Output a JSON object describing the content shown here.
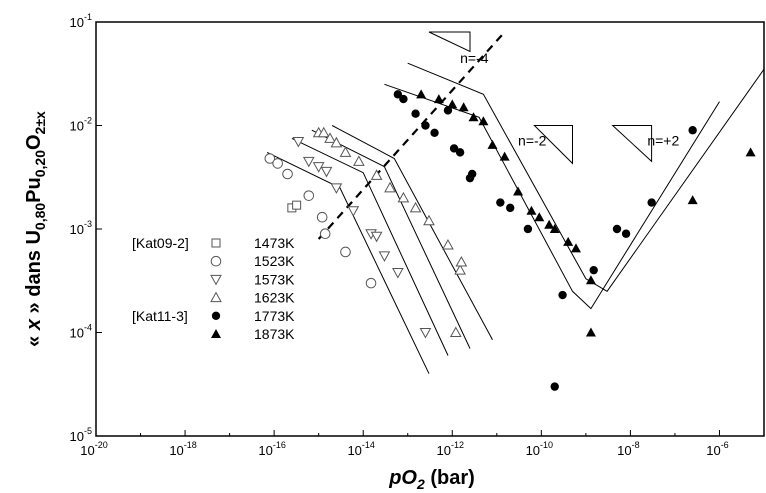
{
  "chart_data": {
    "type": "scatter",
    "xlabel": "pO2 (bar)",
    "ylabel": "« x » dans U0,80Pu0,20O2±x",
    "x_scale": "log",
    "y_scale": "log",
    "xlim": [
      1e-20,
      1e-05
    ],
    "ylim": [
      1e-05,
      0.1
    ],
    "x_ticks": [
      "-20",
      "-18",
      "-16",
      "-14",
      "-12",
      "-10",
      "-8",
      "-6"
    ],
    "y_ticks": [
      "-1",
      "-2",
      "-3",
      "-4",
      "-5"
    ],
    "tick_base": "10",
    "grid": false,
    "legend_groups": [
      {
        "ref": "[Kat09-2]",
        "entries": [
          "1473K"
        ]
      },
      {
        "ref": "",
        "entries": [
          "1523K",
          "1573K",
          "1623K"
        ]
      },
      {
        "ref": "[Kat11-3]",
        "entries": [
          "1773K",
          "1873K"
        ]
      }
    ],
    "series": [
      {
        "name": "1473K",
        "marker": "square-open",
        "points": [
          [
            2.5e-16,
            0.0016
          ],
          [
            3.2e-16,
            0.0017
          ]
        ]
      },
      {
        "name": "1523K",
        "marker": "circle-open",
        "points": [
          [
            8e-17,
            0.0048
          ],
          [
            1.2e-16,
            0.0043
          ],
          [
            2e-16,
            0.0034
          ],
          [
            6e-16,
            0.0021
          ],
          [
            1.2e-15,
            0.0013
          ],
          [
            1.4e-15,
            0.0009
          ],
          [
            4e-15,
            0.0006
          ],
          [
            1.5e-14,
            0.0003
          ]
        ]
      },
      {
        "name": "1573K",
        "marker": "triangle-down-open",
        "points": [
          [
            3.5e-16,
            0.007
          ],
          [
            6e-16,
            0.0045
          ],
          [
            1e-15,
            0.004
          ],
          [
            1.5e-15,
            0.0036
          ],
          [
            2.5e-15,
            0.0025
          ],
          [
            6e-15,
            0.0015
          ],
          [
            1.5e-14,
            0.0009
          ],
          [
            2e-14,
            0.00085
          ],
          [
            3e-14,
            0.00055
          ],
          [
            6e-14,
            0.00038
          ],
          [
            2.5e-13,
            0.0001
          ]
        ]
      },
      {
        "name": "1623K",
        "marker": "triangle-up-open",
        "points": [
          [
            1e-15,
            0.0085
          ],
          [
            1.3e-15,
            0.0085
          ],
          [
            1.8e-15,
            0.0075
          ],
          [
            2.5e-15,
            0.0068
          ],
          [
            4e-15,
            0.0055
          ],
          [
            8e-15,
            0.0045
          ],
          [
            2e-14,
            0.0033
          ],
          [
            4e-14,
            0.0025
          ],
          [
            8e-14,
            0.002
          ],
          [
            1.5e-13,
            0.0016
          ],
          [
            3e-13,
            0.0012
          ],
          [
            8e-13,
            0.0007
          ],
          [
            1.5e-12,
            0.0004
          ],
          [
            1.6e-12,
            0.00048
          ],
          [
            1.2e-12,
            0.0001
          ]
        ]
      },
      {
        "name": "1773K",
        "marker": "circle-filled",
        "points": [
          [
            6e-14,
            0.02
          ],
          [
            8e-14,
            0.018
          ],
          [
            1.5e-13,
            0.013
          ],
          [
            2.5e-13,
            0.01
          ],
          [
            4e-13,
            0.0085
          ],
          [
            8e-13,
            0.014
          ],
          [
            1.1e-12,
            0.006
          ],
          [
            1.5e-12,
            0.0055
          ],
          [
            2.5e-12,
            0.0031
          ],
          [
            2.8e-12,
            0.0034
          ],
          [
            1.2e-11,
            0.0018
          ],
          [
            2e-11,
            0.0016
          ],
          [
            5e-11,
            0.001
          ],
          [
            3e-10,
            0.00023
          ],
          [
            2e-10,
            3e-05
          ],
          [
            1.5e-09,
            0.0004
          ],
          [
            5e-09,
            0.001
          ],
          [
            8e-09,
            0.0009
          ],
          [
            3e-08,
            0.0018
          ],
          [
            2.5e-07,
            0.009
          ]
        ]
      },
      {
        "name": "1873K",
        "marker": "triangle-up-filled",
        "points": [
          [
            2e-13,
            0.02
          ],
          [
            5e-13,
            0.018
          ],
          [
            1e-12,
            0.016
          ],
          [
            1.8e-12,
            0.015
          ],
          [
            3e-12,
            0.012
          ],
          [
            5e-12,
            0.011
          ],
          [
            8e-12,
            0.0065
          ],
          [
            1.5e-11,
            0.005
          ],
          [
            3e-11,
            0.0023
          ],
          [
            6e-11,
            0.0015
          ],
          [
            9e-11,
            0.0013
          ],
          [
            1.5e-10,
            0.0011
          ],
          [
            2e-10,
            0.001
          ],
          [
            4e-10,
            0.00075
          ],
          [
            6e-10,
            0.00065
          ],
          [
            1.3e-09,
            0.00032
          ],
          [
            1.3e-09,
            0.0001
          ],
          [
            2.5e-07,
            0.0019
          ],
          [
            5e-06,
            0.0055
          ]
        ]
      }
    ],
    "fit_lines": [
      {
        "points": [
          [
            7e-17,
            0.0055
          ],
          [
            3e-15,
            0.0025
          ],
          [
            3e-13,
            4e-05
          ]
        ]
      },
      {
        "points": [
          [
            2.5e-16,
            0.0075
          ],
          [
            1e-14,
            0.0035
          ],
          [
            8e-13,
            6e-05
          ]
        ]
      },
      {
        "points": [
          [
            7e-16,
            0.009
          ],
          [
            3e-14,
            0.004
          ],
          [
            2.5e-12,
            7e-05
          ]
        ]
      },
      {
        "points": [
          [
            2e-15,
            0.01
          ],
          [
            5e-14,
            0.0048
          ],
          [
            8e-12,
            8.5e-05
          ]
        ]
      },
      {
        "points": [
          [
            3e-14,
            0.025
          ],
          [
            4e-12,
            0.012
          ],
          [
            5e-10,
            0.00025
          ],
          [
            1.3e-09,
            0.00017
          ],
          [
            1e-06,
            0.017
          ]
        ]
      },
      {
        "points": [
          [
            1e-13,
            0.04
          ],
          [
            5e-12,
            0.02
          ],
          [
            1e-09,
            0.00033
          ],
          [
            3e-09,
            0.00025
          ],
          [
            1e-05,
            0.035
          ]
        ]
      }
    ],
    "dashed_line": {
      "points": [
        [
          1e-15,
          0.0008
        ],
        [
          1.5e-11,
          0.08
        ]
      ]
    },
    "annotations": [
      {
        "text": "n=-4",
        "x": 1.5e-12,
        "y": 0.045
      },
      {
        "text": "n=-2",
        "x": 3e-11,
        "y": 0.0072
      },
      {
        "text": "n=+2",
        "x": 2.4e-08,
        "y": 0.0072
      }
    ],
    "slope_triangles": [
      {
        "x1": 3e-13,
        "x2": 2.5e-12,
        "ytop": 0.08,
        "ybot": 0.052
      },
      {
        "x1": 7e-11,
        "x2": 5e-10,
        "ytop": 0.01,
        "ybot": 0.0043
      },
      {
        "x1": 4e-09,
        "x2": 3e-08,
        "ytop": 0.01,
        "ybot": 0.0045
      }
    ]
  }
}
